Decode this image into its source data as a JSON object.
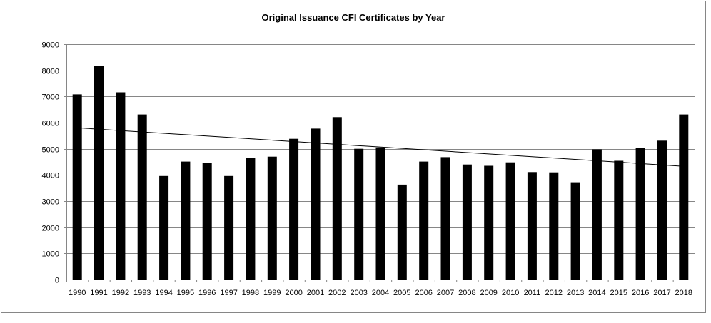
{
  "chart_data": {
    "type": "bar",
    "title": "Original Issuance CFI Certificates by Year",
    "xlabel": "",
    "ylabel": "",
    "ylim": [
      0,
      9000
    ],
    "yticks": [
      0,
      1000,
      2000,
      3000,
      4000,
      5000,
      6000,
      7000,
      8000,
      9000
    ],
    "grid": true,
    "legend": "none",
    "bar_color": "#000000",
    "gridline_color": "#868686",
    "categories": [
      "1990",
      "1991",
      "1992",
      "1993",
      "1994",
      "1995",
      "1996",
      "1997",
      "1998",
      "1999",
      "2000",
      "2001",
      "2002",
      "2003",
      "2004",
      "2005",
      "2006",
      "2007",
      "2008",
      "2009",
      "2010",
      "2011",
      "2012",
      "2013",
      "2014",
      "2015",
      "2016",
      "2017",
      "2018"
    ],
    "values": [
      7080,
      8170,
      7160,
      6310,
      3960,
      4510,
      4450,
      3960,
      4650,
      4700,
      5380,
      5770,
      6210,
      5000,
      5050,
      3630,
      4510,
      4680,
      4400,
      4350,
      4480,
      4110,
      4100,
      3720,
      4980,
      4540,
      5030,
      5310,
      6310
    ],
    "trendline": {
      "type": "linear",
      "start": 5800,
      "end": 4330
    }
  }
}
